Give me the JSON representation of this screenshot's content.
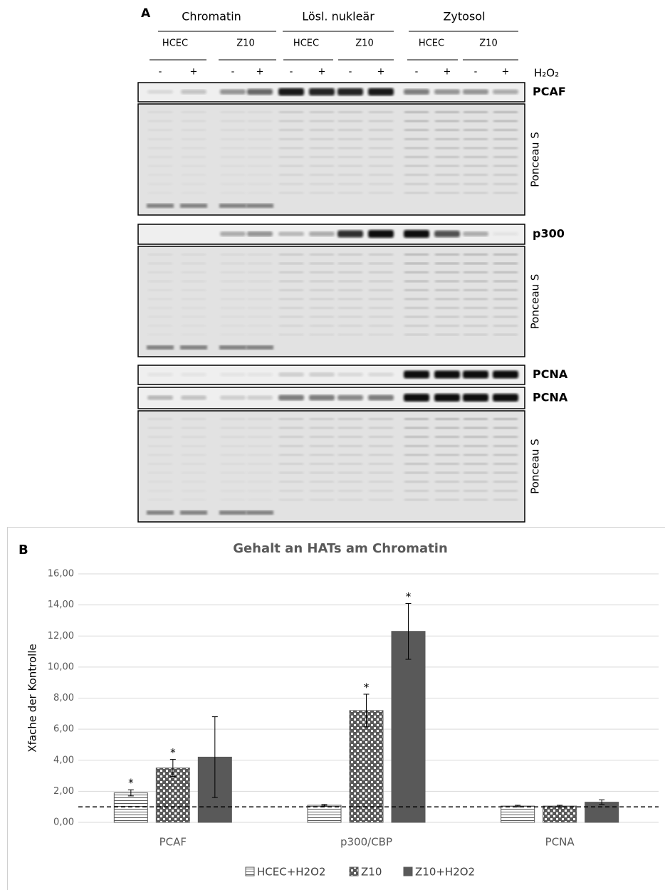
{
  "panel_a": {
    "label": "A",
    "groups": [
      {
        "name": "Chromatin",
        "subgroups": [
          "HCEC",
          "Z10"
        ]
      },
      {
        "name": "Lösl. nukleär",
        "subgroups": [
          "HCEC",
          "Z10"
        ]
      },
      {
        "name": "Zytosol",
        "subgroups": [
          "HCEC",
          "Z10"
        ]
      }
    ],
    "lanes": [
      "-",
      "+",
      "-",
      "+",
      "-",
      "+",
      "-",
      "+",
      "-",
      "+",
      "-",
      "+"
    ],
    "treatment": "H₂O₂",
    "blots": [
      "PCAF",
      "Ponceau S",
      "p300",
      "Ponceau S",
      "PCNA",
      "PCNA",
      "Ponceau S"
    ]
  },
  "panel_label": "B",
  "chart_data": {
    "type": "bar",
    "title": "Gehalt an HATs am Chromatin",
    "y_label": "Xfache der Kontrolle",
    "categories": [
      "PCAF",
      "p300/CBP",
      "PCNA"
    ],
    "series": [
      {
        "name": "HCEC+H2O2",
        "color": "#595959",
        "pattern": "horizontal-lines",
        "values": [
          1.9,
          1.1,
          1.05
        ],
        "errors": [
          0.2,
          0.05,
          0.05
        ],
        "markers": [
          "*",
          null,
          null
        ]
      },
      {
        "name": "Z10",
        "color": "#595959",
        "pattern": "checker",
        "values": [
          3.5,
          7.2,
          1.05
        ],
        "errors": [
          0.55,
          1.05,
          0.05
        ],
        "markers": [
          "*",
          "*",
          null
        ]
      },
      {
        "name": "Z10+H2O2",
        "color": "#595959",
        "pattern": "solid",
        "values": [
          4.2,
          12.3,
          1.3
        ],
        "errors": [
          2.6,
          1.8,
          0.15
        ],
        "markers": [
          null,
          "*",
          null
        ]
      }
    ],
    "ylim": [
      0,
      16
    ],
    "yticks": [
      {
        "value": 0,
        "label": "0,00"
      },
      {
        "value": 2,
        "label": "2,00"
      },
      {
        "value": 4,
        "label": "4,00"
      },
      {
        "value": 6,
        "label": "6,00"
      },
      {
        "value": 8,
        "label": "8,00"
      },
      {
        "value": 10,
        "label": "10,00"
      },
      {
        "value": 12,
        "label": "12,00"
      },
      {
        "value": 14,
        "label": "14,00"
      },
      {
        "value": 16,
        "label": "16,00"
      }
    ],
    "grid": true,
    "reference_line": 1,
    "legend": "bottom"
  }
}
